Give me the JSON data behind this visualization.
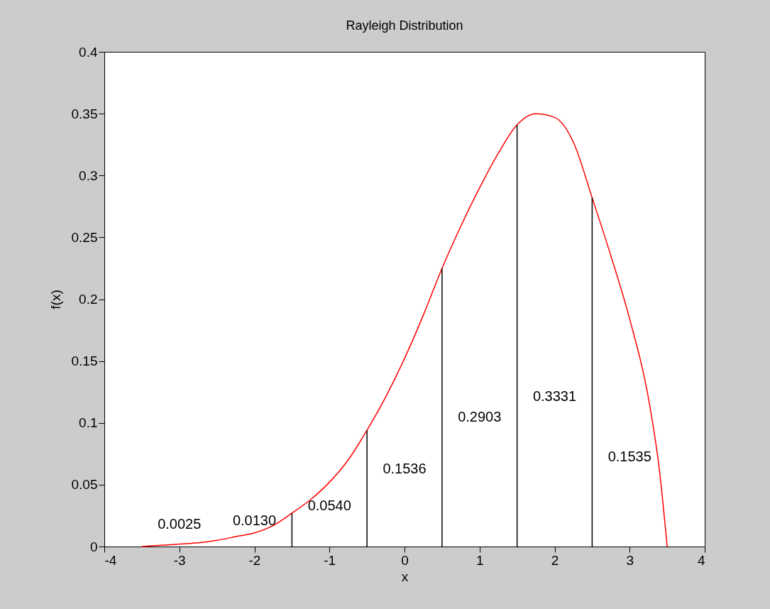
{
  "chart_data": {
    "type": "line",
    "title": "Rayleigh Distribution",
    "xlabel": "x",
    "ylabel": "f(x)",
    "xlim": [
      -4,
      4
    ],
    "ylim": [
      0,
      0.4
    ],
    "xticks": [
      -4,
      -3,
      -2,
      -1,
      0,
      1,
      2,
      3,
      4
    ],
    "yticks": [
      0,
      0.05,
      0.1,
      0.15,
      0.2,
      0.25,
      0.3,
      0.35,
      0.4
    ],
    "grid": false,
    "series": [
      {
        "color": "#ff0000",
        "x": [
          -3.5,
          -3.25,
          -3,
          -2.75,
          -2.5,
          -2.25,
          -2,
          -1.75,
          -1.5,
          -1.25,
          -1,
          -0.75,
          -0.5,
          -0.25,
          0,
          0.25,
          0.5,
          0.75,
          1,
          1.25,
          1.5,
          1.75,
          2,
          2.25,
          2.5,
          2.75,
          3,
          3.25,
          3.4,
          3.5
        ],
        "values": [
          0,
          0.001,
          0.002,
          0.003,
          0.005,
          0.008,
          0.011,
          0.017,
          0.027,
          0.038,
          0.052,
          0.07,
          0.094,
          0.121,
          0.152,
          0.187,
          0.225,
          0.259,
          0.29,
          0.318,
          0.341,
          0.35,
          0.347,
          0.327,
          0.282,
          0.235,
          0.184,
          0.12,
          0.06,
          0
        ]
      },
      {
        "type": "bar",
        "color": "#000000",
        "x": [
          -1.5,
          -0.5,
          0.5,
          1.5,
          2.5
        ],
        "values": [
          0.027,
          0.094,
          0.225,
          0.341,
          0.282
        ]
      }
    ],
    "annotations": [
      "0.0025",
      "0.0130",
      "0.0540",
      "0.1536",
      "0.2903",
      "0.3331",
      "0.1535"
    ]
  }
}
